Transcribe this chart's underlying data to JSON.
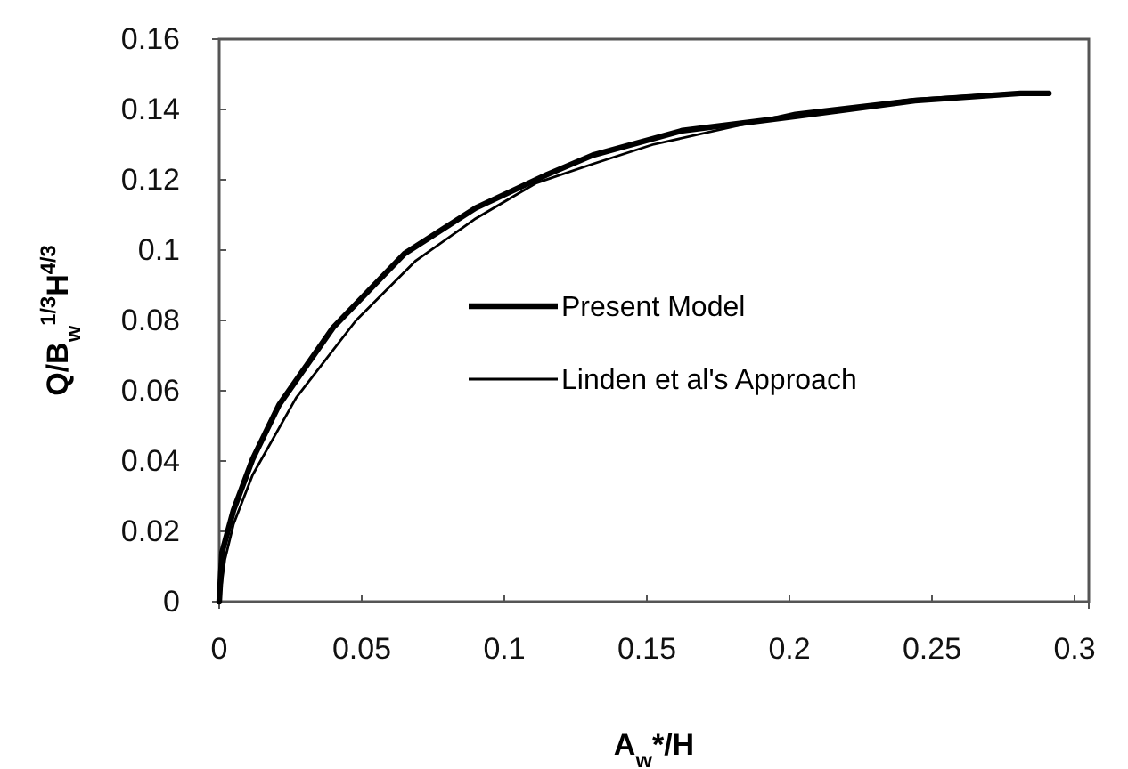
{
  "chart_data": {
    "type": "line",
    "xlabel": "A$_{w}$*/H",
    "ylabel": "Q/B$_{w}$$^{1/3}$H$^{4/3}$",
    "xlim": [
      0,
      0.305
    ],
    "xticks": [
      0,
      0.05,
      0.1,
      0.15,
      0.2,
      0.25,
      0.3
    ],
    "ylim": [
      0,
      0.16
    ],
    "yticks": [
      0,
      0.02,
      0.04,
      0.06,
      0.08,
      0.1,
      0.12,
      0.14,
      0.16
    ],
    "grid": false,
    "legend": "right",
    "marker": "none",
    "line_style": "solid",
    "series": [
      {
        "name": "Present Model",
        "color": "#000000",
        "x": [
          0,
          0.001,
          0.005,
          0.0117,
          0.021,
          0.04,
          0.065,
          0.09,
          0.115,
          0.131,
          0.1625,
          0.202,
          0.244,
          0.281,
          0.291
        ],
        "values": [
          0,
          0.014,
          0.026,
          0.0405,
          0.056,
          0.078,
          0.099,
          0.112,
          0.1215,
          0.127,
          0.134,
          0.138,
          0.1425,
          0.1446,
          0.1446
        ]
      },
      {
        "name": "Linden et al's Approach",
        "color": "#000000",
        "x": [
          0,
          0.002,
          0.005,
          0.0117,
          0.027,
          0.048,
          0.069,
          0.09,
          0.111,
          0.131,
          0.152,
          0.202,
          0.244,
          0.281,
          0.287
        ],
        "values": [
          0,
          0.012,
          0.022,
          0.036,
          0.058,
          0.08,
          0.097,
          0.109,
          0.119,
          0.1245,
          0.13,
          0.139,
          0.143,
          0.1448,
          0.1448
        ]
      }
    ]
  }
}
